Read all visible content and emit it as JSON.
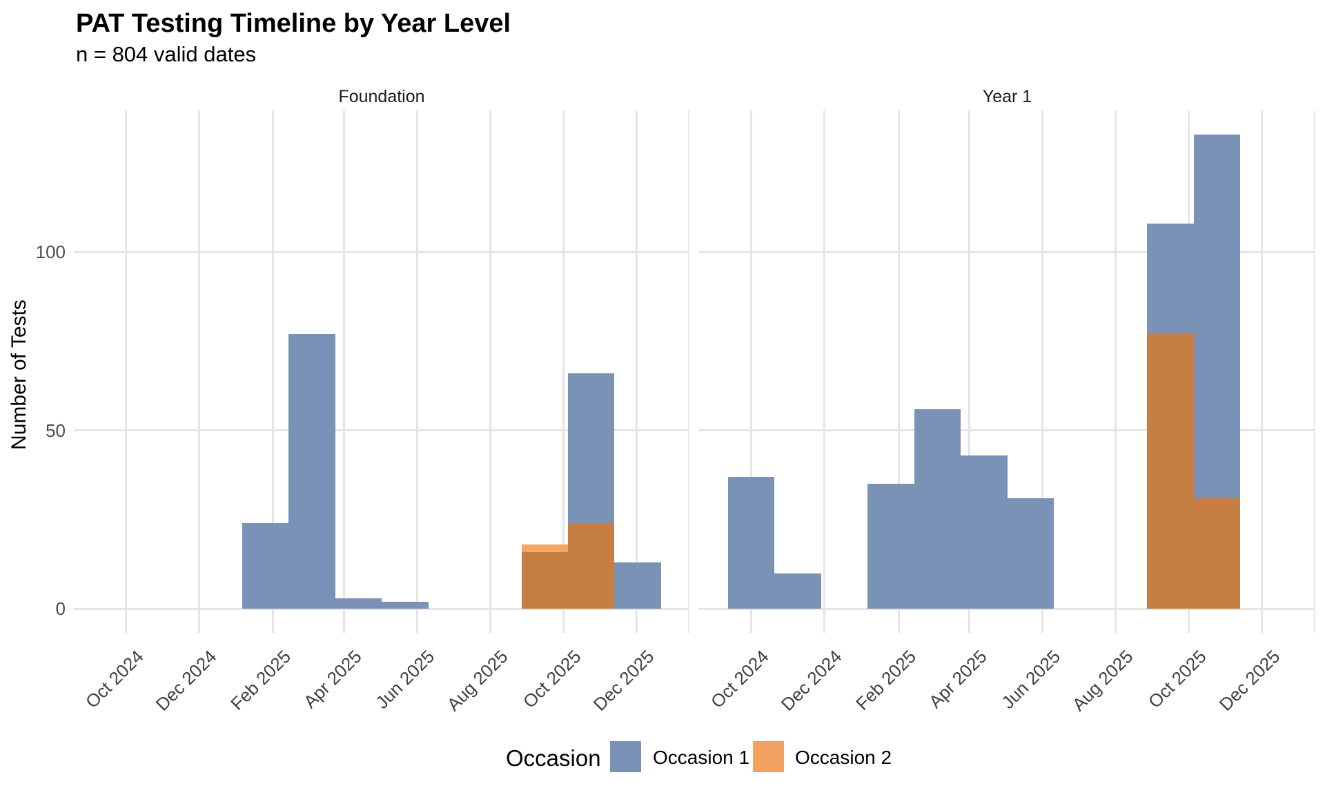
{
  "header": {
    "title": "PAT Testing Timeline by Year Level",
    "subtitle": "n = 804 valid dates"
  },
  "axes": {
    "y_title": "Number of Tests",
    "y_tick_labels": [
      "0",
      "50",
      "100"
    ],
    "x_tick_labels": [
      "Oct 2024",
      "Dec 2024",
      "Feb 2025",
      "Apr 2025",
      "Jun 2025",
      "Aug 2025",
      "Oct 2025",
      "Dec 2025"
    ]
  },
  "legend": {
    "title": "Occasion",
    "items": [
      {
        "label": "Occasion 1",
        "color": "#7A92B5"
      },
      {
        "label": "Occasion 2",
        "color": "#F2A161"
      }
    ]
  },
  "colors": {
    "occasion1_fill": "#7A92B5",
    "occasion2_fill": "#F6A662",
    "overlap_fill": "#C67E42",
    "gridline": "#E5E5E5",
    "panel_edge": "#E9E9E9",
    "axis_text": "#404040",
    "background": "#FFFFFF"
  },
  "chart_data": {
    "type": "bar",
    "subtype": "faceted-histogram-by-date",
    "title": "PAT Testing Timeline by Year Level",
    "subtitle": "n = 804 valid dates",
    "n_total": 804,
    "xlabel": "",
    "ylabel": "Number of Tests",
    "legend_title": "Occasion",
    "series_names": [
      "Occasion 1",
      "Occasion 2"
    ],
    "grid": "major-only",
    "legend_position": "bottom",
    "x_epoch": "2024-10-01",
    "x_range_days": [
      -43.2,
      470.3
    ],
    "bin_width_days": 38.8,
    "ylim": [
      -6.7,
      139.7
    ],
    "y_ticks": [
      0,
      50,
      100
    ],
    "x_ticks": [
      {
        "label": "Oct 2024",
        "day": 0
      },
      {
        "label": "Dec 2024",
        "day": 61
      },
      {
        "label": "Feb 2025",
        "day": 123
      },
      {
        "label": "Apr 2025",
        "day": 182
      },
      {
        "label": "Jun 2025",
        "day": 243
      },
      {
        "label": "Aug 2025",
        "day": 304
      },
      {
        "label": "Oct 2025",
        "day": 365
      },
      {
        "label": "Dec 2025",
        "day": 426
      }
    ],
    "facets": [
      {
        "label": "Foundation",
        "bins": [
          {
            "date": "2025-01-06",
            "day": 97.2,
            "occasion1": 24,
            "occasion2": 0
          },
          {
            "date": "2025-02-14",
            "day": 136.0,
            "occasion1": 77,
            "occasion2": 0
          },
          {
            "date": "2025-03-25",
            "day": 174.8,
            "occasion1": 3,
            "occasion2": 0
          },
          {
            "date": "2025-05-02",
            "day": 213.7,
            "occasion1": 2,
            "occasion2": 0
          },
          {
            "date": "2025-08-27",
            "day": 330.2,
            "occasion1": 16,
            "occasion2": 18
          },
          {
            "date": "2025-10-05",
            "day": 369.0,
            "occasion1": 66,
            "occasion2": 24
          },
          {
            "date": "2025-11-12",
            "day": 407.8,
            "occasion1": 13,
            "occasion2": 0
          }
        ]
      },
      {
        "label": "Year 1",
        "bins": [
          {
            "date": "2024-09-12",
            "day": -19.3,
            "occasion1": 37,
            "occasion2": 0
          },
          {
            "date": "2024-10-20",
            "day": 19.5,
            "occasion1": 10,
            "occasion2": 0
          },
          {
            "date": "2025-01-06",
            "day": 97.2,
            "occasion1": 35,
            "occasion2": 0
          },
          {
            "date": "2025-02-14",
            "day": 136.0,
            "occasion1": 56,
            "occasion2": 0
          },
          {
            "date": "2025-03-25",
            "day": 174.8,
            "occasion1": 43,
            "occasion2": 0
          },
          {
            "date": "2025-05-02",
            "day": 213.7,
            "occasion1": 31,
            "occasion2": 0
          },
          {
            "date": "2025-08-27",
            "day": 330.2,
            "occasion1": 108,
            "occasion2": 77
          },
          {
            "date": "2025-10-05",
            "day": 369.0,
            "occasion1": 133,
            "occasion2": 31
          }
        ]
      }
    ]
  }
}
